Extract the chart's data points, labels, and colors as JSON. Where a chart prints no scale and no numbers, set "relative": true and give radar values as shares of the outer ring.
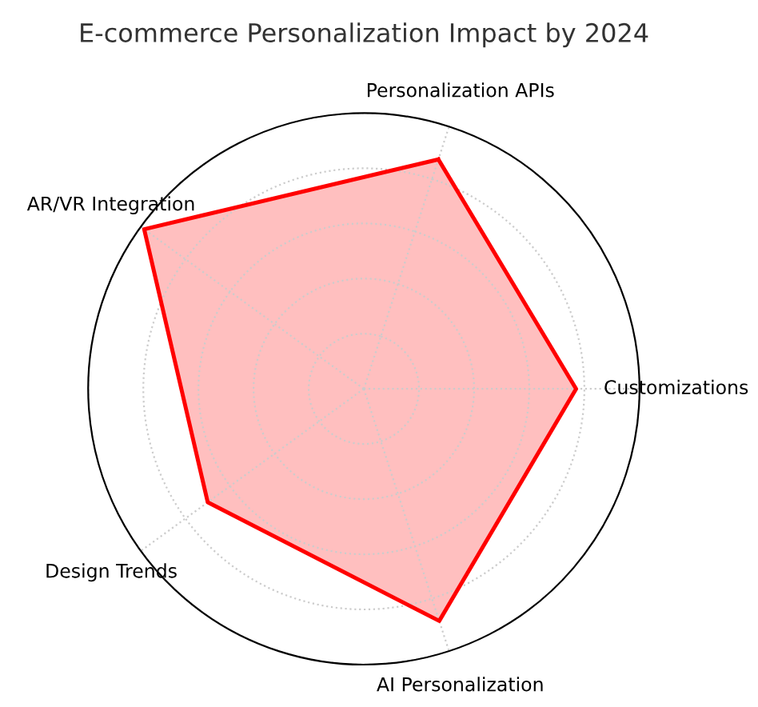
{
  "chart_data": {
    "type": "radar",
    "title": "E-commerce Personalization Impact by 2024",
    "categories": [
      "Personalization APIs",
      "Customizations",
      "AI Personalization",
      "Design Trends",
      "AR/VR Integration"
    ],
    "relative": true,
    "grid": true,
    "legend": false,
    "series": [
      {
        "color": "#ff0000",
        "values": [
          0.875,
          0.77,
          0.885,
          0.7,
          0.985
        ]
      }
    ]
  }
}
